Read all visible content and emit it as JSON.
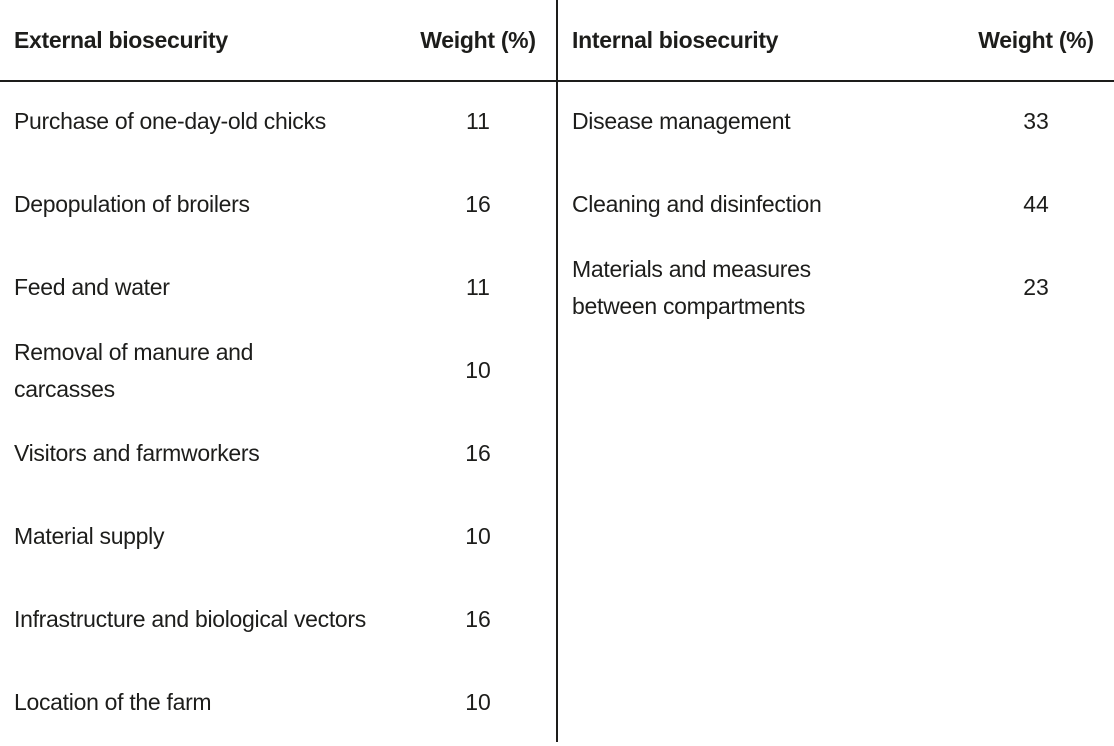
{
  "colors": {
    "background": "#ffffff",
    "text": "#1d1d1b",
    "line": "#1d1d1b"
  },
  "table": {
    "sections": [
      {
        "title": "External biosecurity",
        "weight_header": "Weight (%)",
        "rows": [
          {
            "label": "Purchase of one-day-old chicks",
            "weight": 11
          },
          {
            "label": "Depopulation of broilers",
            "weight": 16
          },
          {
            "label": "Feed and water",
            "weight": 11
          },
          {
            "label": "Removal of manure and\ncarcasses",
            "weight": 10
          },
          {
            "label": "Visitors and farmworkers",
            "weight": 16
          },
          {
            "label": "Material supply",
            "weight": 10
          },
          {
            "label": "Infrastructure and biological vectors",
            "weight": 16
          },
          {
            "label": "Location of the farm",
            "weight": 10
          }
        ]
      },
      {
        "title": "Internal biosecurity",
        "weight_header": "Weight (%)",
        "rows": [
          {
            "label": "Disease management",
            "weight": 33
          },
          {
            "label": "Cleaning and disinfection",
            "weight": 44
          },
          {
            "label": "Materials and measures\nbetween compartments",
            "weight": 23
          }
        ]
      }
    ]
  }
}
